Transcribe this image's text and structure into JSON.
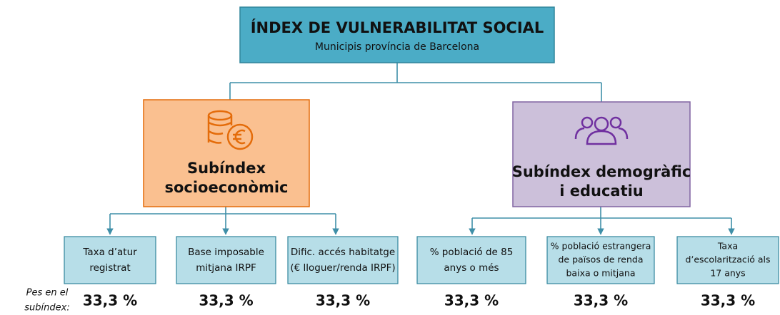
{
  "root": {
    "title": "ÍNDEX DE VULNERABILITAT SOCIAL",
    "subtitle": "Municipis província de Barcelona"
  },
  "weight_label": [
    "Pes en el",
    "subíndex:"
  ],
  "subindices": [
    {
      "lines": [
        "Subíndex",
        "socioeconòmic"
      ],
      "indicators": [
        {
          "lines": [
            "Taxa d’atur",
            "registrat"
          ],
          "weight": "33,3 %"
        },
        {
          "lines": [
            "Base imposable",
            "mitjana IRPF"
          ],
          "weight": "33,3 %"
        },
        {
          "lines": [
            "Dific. accés habitatge",
            "(€ lloguer/renda IRPF)"
          ],
          "weight": "33,3 %"
        }
      ]
    },
    {
      "lines": [
        "Subíndex demogràfic",
        "i educatiu"
      ],
      "indicators": [
        {
          "lines": [
            "% població de 85",
            "anys o més"
          ],
          "weight": "33,3 %"
        },
        {
          "lines": [
            "% població estrangera",
            "de països de renda",
            "baixa o mitjana"
          ],
          "weight": "33,3 %"
        },
        {
          "lines": [
            "Taxa",
            "d’escolarització als",
            "17 anys"
          ],
          "weight": "33,3 %"
        }
      ]
    }
  ]
}
